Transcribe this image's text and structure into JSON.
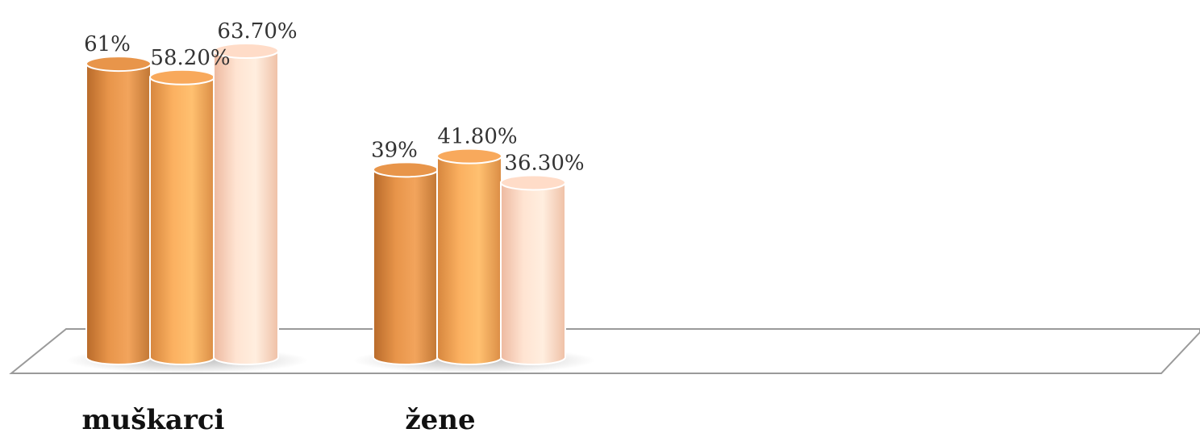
{
  "chart_data": {
    "type": "bar",
    "style": "3d-cylinder",
    "categories": [
      "muškarci",
      "žene"
    ],
    "series": [
      {
        "values": [
          61,
          39
        ],
        "labels": [
          "61%",
          "39%"
        ],
        "color": "#E8954A"
      },
      {
        "values": [
          58.2,
          41.8
        ],
        "labels": [
          "58.20%",
          "41.80%"
        ],
        "color": "#F8A95C"
      },
      {
        "values": [
          63.7,
          36.3
        ],
        "labels": [
          "63.70%",
          "36.30%"
        ],
        "color": "#FFDCC8"
      }
    ],
    "ylim": [
      0,
      100
    ],
    "grid": false,
    "legend": "none",
    "xlabel": "",
    "ylabel": "",
    "title": ""
  }
}
